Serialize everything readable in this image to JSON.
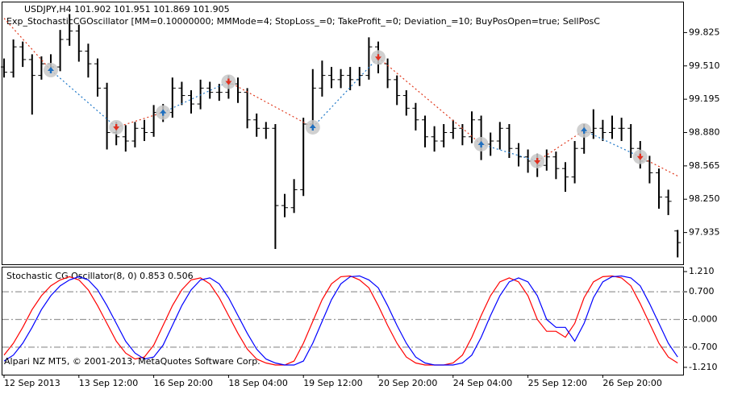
{
  "chart_data": [
    {
      "type": "ohlc",
      "title": "USDJPY,H4  101.902 101.951 101.869 101.905",
      "subtitle": "Exp_StochasticCGOscillator [MM=0.10000000; MMMode=4; StopLoss_=0; TakeProfit_=0; Deviation_=10; BuyPosOpen=true; SellPosC",
      "color": "#000000",
      "categories": [
        "12 Sep 2013",
        null,
        null,
        null,
        null,
        null,
        null,
        null,
        "13 Sep 12:00",
        null,
        null,
        null,
        null,
        null,
        null,
        null,
        "16 Sep 20:00",
        null,
        null,
        null,
        null,
        null,
        null,
        null,
        "18 Sep 04:00",
        null,
        null,
        null,
        null,
        null,
        null,
        null,
        "19 Sep 12:00",
        null,
        null,
        null,
        null,
        null,
        null,
        null,
        "20 Sep 20:00",
        null,
        null,
        null,
        null,
        null,
        null,
        null,
        "24 Sep 04:00",
        null,
        null,
        null,
        null,
        null,
        null,
        null,
        "25 Sep 12:00",
        null,
        null,
        null,
        null,
        null,
        null,
        null,
        "26 Sep 20:00",
        null,
        null,
        null,
        null,
        null,
        null,
        null,
        null
      ],
      "open": [
        99.5,
        99.45,
        99.69,
        99.57,
        99.42,
        99.53,
        99.5,
        99.76,
        99.84,
        99.65,
        99.53,
        99.3,
        98.88,
        98.84,
        98.8,
        98.92,
        98.88,
        99.07,
        99.07,
        99.3,
        99.23,
        99.15,
        99.3,
        99.26,
        99.26,
        99.34,
        99.26,
        99.0,
        98.92,
        98.92,
        98.19,
        98.17,
        98.34,
        98.96,
        99.3,
        99.42,
        99.38,
        99.42,
        99.38,
        99.42,
        99.69,
        99.53,
        99.38,
        99.23,
        99.11,
        99.0,
        98.84,
        98.8,
        98.88,
        98.92,
        98.84,
        99.0,
        98.77,
        98.8,
        98.92,
        98.73,
        98.65,
        98.61,
        98.57,
        98.65,
        98.54,
        98.46,
        98.73,
        98.88,
        98.92,
        98.88,
        98.92,
        98.92,
        98.73,
        98.61,
        98.5,
        98.27,
        97.95
      ],
      "high": [
        99.58,
        99.76,
        99.74,
        99.62,
        99.6,
        99.62,
        99.85,
        100.0,
        99.9,
        99.72,
        99.58,
        99.35,
        98.98,
        98.95,
        98.98,
        99.0,
        99.14,
        99.15,
        99.4,
        99.36,
        99.28,
        99.38,
        99.36,
        99.34,
        99.42,
        99.4,
        99.3,
        99.06,
        98.98,
        98.96,
        98.3,
        98.44,
        99.02,
        99.48,
        99.56,
        99.5,
        99.48,
        99.5,
        99.5,
        99.78,
        99.74,
        99.58,
        99.42,
        99.28,
        99.16,
        99.04,
        98.94,
        98.96,
        99.0,
        98.96,
        99.08,
        99.04,
        98.88,
        98.98,
        98.96,
        98.78,
        98.72,
        98.68,
        98.72,
        98.7,
        98.6,
        98.8,
        98.96,
        99.1,
        99.0,
        99.04,
        99.02,
        98.96,
        98.8,
        98.66,
        98.54,
        98.34,
        97.96
      ],
      "low": [
        99.4,
        99.4,
        99.5,
        99.05,
        99.38,
        99.44,
        99.46,
        99.7,
        99.55,
        99.4,
        99.22,
        98.72,
        98.76,
        98.7,
        98.74,
        98.8,
        98.84,
        98.98,
        99.02,
        99.14,
        99.06,
        99.1,
        99.2,
        99.18,
        99.2,
        99.16,
        98.92,
        98.84,
        98.82,
        97.78,
        98.08,
        98.12,
        98.28,
        98.9,
        99.22,
        99.3,
        99.3,
        99.28,
        99.32,
        99.38,
        99.44,
        99.3,
        99.14,
        99.04,
        98.9,
        98.74,
        98.7,
        98.74,
        98.82,
        98.76,
        98.78,
        98.62,
        98.66,
        98.72,
        98.64,
        98.56,
        98.5,
        98.46,
        98.52,
        98.44,
        98.32,
        98.4,
        98.68,
        98.82,
        98.8,
        98.82,
        98.8,
        98.64,
        98.54,
        98.4,
        98.16,
        98.1,
        97.7
      ],
      "close": [
        99.45,
        99.69,
        99.57,
        99.42,
        99.53,
        99.5,
        99.76,
        99.84,
        99.65,
        99.53,
        99.3,
        98.88,
        98.84,
        98.8,
        98.92,
        98.88,
        99.07,
        99.07,
        99.3,
        99.23,
        99.15,
        99.3,
        99.26,
        99.26,
        99.34,
        99.26,
        99.0,
        98.92,
        98.92,
        98.19,
        98.17,
        98.34,
        98.96,
        99.3,
        99.42,
        99.38,
        99.42,
        99.38,
        99.42,
        99.69,
        99.53,
        99.38,
        99.23,
        99.11,
        99.0,
        98.84,
        98.8,
        98.88,
        98.92,
        98.84,
        99.0,
        98.77,
        98.8,
        98.92,
        98.73,
        98.65,
        98.61,
        98.57,
        98.65,
        98.54,
        98.46,
        98.73,
        98.88,
        98.92,
        98.88,
        98.92,
        98.92,
        98.73,
        98.61,
        98.5,
        98.27,
        98.23,
        97.84
      ],
      "ylim": [
        97.635,
        100.11
      ],
      "yticks": [
        99.825,
        {
          "value": 99.51,
          "label": "99.510"
        },
        99.195,
        {
          "value": 98.88,
          "label": "98.880"
        },
        98.565,
        {
          "value": 98.25,
          "label": "98.250"
        },
        97.935
      ],
      "sell_lines": {
        "color": "#e03a1e",
        "x": [
          0,
          5,
          null,
          12,
          17,
          null,
          24,
          33,
          null,
          40,
          51,
          null,
          57,
          62,
          null,
          68,
          72
        ],
        "values": [
          99.96,
          99.47,
          null,
          98.93,
          99.07,
          null,
          99.36,
          98.93,
          null,
          99.59,
          98.77,
          null,
          98.61,
          98.9,
          null,
          98.65,
          98.47
        ]
      },
      "buy_lines": {
        "color": "#1f78c8",
        "x": [
          5,
          12,
          null,
          17,
          24,
          null,
          33,
          40,
          null,
          51,
          57,
          null,
          62,
          68
        ],
        "values": [
          99.47,
          98.93,
          null,
          99.07,
          99.36,
          null,
          98.93,
          99.59,
          null,
          98.77,
          98.61,
          null,
          98.9,
          98.65
        ]
      },
      "buy_deals": {
        "color": "#1f6fbf",
        "x": [
          5,
          17,
          33,
          51,
          62
        ],
        "values": [
          99.47,
          99.07,
          98.93,
          98.77,
          98.9
        ]
      },
      "sell_deals": {
        "color": "#e03020",
        "x": [
          12,
          24,
          40,
          57,
          68
        ],
        "values": [
          98.93,
          99.36,
          99.59,
          98.61,
          98.65
        ]
      }
    },
    {
      "type": "line",
      "title": "Stochastic CG Oscillator(8, 0) 0.853 0.506",
      "annotation": "Alpari NZ MT5, © 2001-2013, MetaQuotes Software Corp.",
      "series": [
        {
          "color": "#ff0000",
          "values": [
            -0.9,
            -0.6,
            -0.2,
            0.25,
            0.6,
            0.85,
            1.0,
            1.08,
            1.0,
            0.75,
            0.35,
            -0.1,
            -0.55,
            -0.85,
            -1.0,
            -0.95,
            -0.65,
            -0.15,
            0.35,
            0.75,
            1.0,
            1.05,
            0.9,
            0.55,
            0.1,
            -0.35,
            -0.75,
            -1.0,
            -1.1,
            -1.15,
            -1.15,
            -1.05,
            -0.6,
            -0.05,
            0.5,
            0.9,
            1.08,
            1.1,
            1.0,
            0.8,
            0.35,
            -0.15,
            -0.6,
            -0.95,
            -1.1,
            -1.15,
            -1.15,
            -1.15,
            -1.1,
            -0.9,
            -0.45,
            0.1,
            0.6,
            0.95,
            1.05,
            0.95,
            0.6,
            0.0,
            -0.3,
            -0.3,
            -0.45,
            -0.1,
            0.55,
            0.95,
            1.08,
            1.1,
            1.05,
            0.85,
            0.4,
            -0.1,
            -0.6,
            -0.95,
            -1.1
          ]
        },
        {
          "color": "#0000ff",
          "values": [
            -1.05,
            -0.9,
            -0.6,
            -0.2,
            0.25,
            0.6,
            0.85,
            1.0,
            1.08,
            1.0,
            0.75,
            0.35,
            -0.1,
            -0.55,
            -0.85,
            -1.0,
            -0.95,
            -0.65,
            -0.15,
            0.35,
            0.75,
            1.0,
            1.05,
            0.9,
            0.55,
            0.1,
            -0.35,
            -0.75,
            -1.0,
            -1.1,
            -1.15,
            -1.15,
            -1.05,
            -0.6,
            -0.05,
            0.5,
            0.9,
            1.08,
            1.1,
            1.0,
            0.8,
            0.35,
            -0.15,
            -0.6,
            -0.95,
            -1.1,
            -1.15,
            -1.15,
            -1.15,
            -1.1,
            -0.9,
            -0.45,
            0.1,
            0.6,
            0.95,
            1.05,
            0.95,
            0.6,
            0.0,
            -0.2,
            -0.2,
            -0.55,
            -0.1,
            0.55,
            0.95,
            1.08,
            1.1,
            1.05,
            0.85,
            0.4,
            -0.1,
            -0.6,
            -0.95
          ]
        }
      ],
      "ylim": [
        -1.395,
        1.313
      ],
      "yticks": [
        {
          "value": 1.21,
          "label": "1.210"
        },
        {
          "value": 0.7,
          "label": "0.700"
        },
        {
          "value": 0,
          "label": "-0.000"
        },
        {
          "value": -0.7,
          "label": "-0.700"
        },
        {
          "value": -1.21,
          "label": "-1.210"
        }
      ],
      "levels": [
        0.7,
        0,
        -0.7
      ],
      "level_color": "#999999"
    }
  ]
}
